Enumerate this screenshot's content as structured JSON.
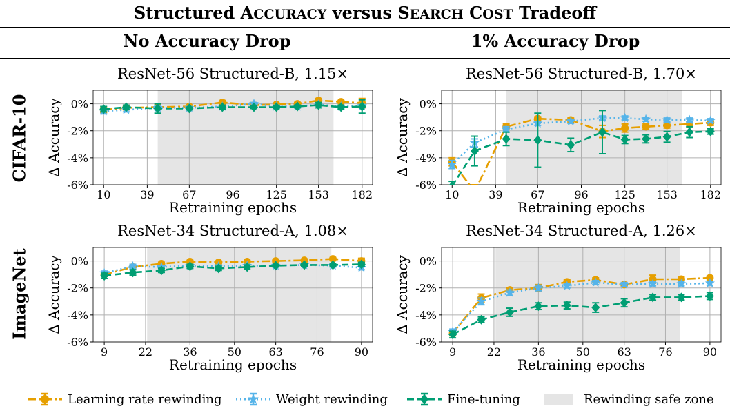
{
  "title": {
    "pre": "Structured ",
    "w1_first": "A",
    "w1_rest": "CCURACY",
    "mid": " versus ",
    "w2_first": "S",
    "w2_rest": "EARCH",
    "w3_first": "C",
    "w3_rest": "OST",
    "post": " Tradeoff"
  },
  "columns": [
    "No Accuracy Drop",
    "1% Accuracy Drop"
  ],
  "rows": [
    "CIFAR-10",
    "ImageNet"
  ],
  "legend": {
    "lr": "Learning rate rewinding",
    "wr": "Weight rewinding",
    "ft": "Fine-tuning",
    "zone": "Rewinding safe zone"
  },
  "colors": {
    "lr": "#e69f00",
    "wr": "#56b4e9",
    "ft": "#009e73",
    "zone": "#e5e5e5",
    "grid": "#b0b0b0"
  },
  "chart_data": [
    {
      "type": "line",
      "title": "ResNet-56 Structured-B, 1.15×",
      "xlabel": "Retraining epochs",
      "ylabel": "Δ Accuracy",
      "xticks": [
        10,
        39,
        67,
        96,
        125,
        153,
        182
      ],
      "yticks": [
        0,
        -2,
        -4,
        -6
      ],
      "ylim": [
        -6,
        1
      ],
      "xlim": [
        3,
        189
      ],
      "safe_zone": [
        46,
        163
      ],
      "x": [
        10,
        25,
        46,
        67,
        89,
        110,
        125,
        139,
        153,
        168,
        182
      ],
      "series": [
        {
          "key": "lr",
          "name": "Learning rate rewinding",
          "values": [
            -0.45,
            -0.3,
            -0.25,
            -0.2,
            0.1,
            -0.1,
            -0.05,
            0.0,
            0.25,
            0.15,
            0.05
          ],
          "err": [
            0.2,
            0.15,
            0.15,
            0.1,
            0.15,
            0.1,
            0.1,
            0.1,
            0.15,
            0.1,
            0.35
          ]
        },
        {
          "key": "wr",
          "name": "Weight rewinding",
          "values": [
            -0.55,
            -0.45,
            -0.3,
            -0.3,
            -0.2,
            0.0,
            -0.2,
            -0.2,
            -0.05,
            -0.2,
            -0.15
          ],
          "err": [
            0.2,
            0.15,
            0.15,
            0.1,
            0.1,
            0.1,
            0.1,
            0.1,
            0.1,
            0.1,
            0.1
          ]
        },
        {
          "key": "ft",
          "name": "Fine-tuning",
          "values": [
            -0.4,
            -0.25,
            -0.35,
            -0.35,
            -0.25,
            -0.25,
            -0.25,
            -0.2,
            -0.1,
            -0.25,
            -0.2
          ],
          "err": [
            0.2,
            0.15,
            0.35,
            0.1,
            0.15,
            0.1,
            0.1,
            0.1,
            0.2,
            0.15,
            0.5
          ]
        }
      ]
    },
    {
      "type": "line",
      "title": "ResNet-56 Structured-B, 1.70×",
      "xlabel": "Retraining epochs",
      "ylabel": "Δ Accuracy",
      "xticks": [
        10,
        39,
        67,
        96,
        125,
        153,
        182
      ],
      "yticks": [
        0,
        -2,
        -4,
        -6
      ],
      "ylim": [
        -6,
        1
      ],
      "xlim": [
        3,
        189
      ],
      "safe_zone": [
        46,
        163
      ],
      "x": [
        10,
        25,
        46,
        67,
        89,
        110,
        125,
        139,
        153,
        168,
        182
      ],
      "series": [
        {
          "key": "lr",
          "name": "Learning rate rewinding",
          "values": [
            -4.3,
            -6.5,
            -1.7,
            -1.1,
            -1.2,
            -2.05,
            -1.8,
            -1.7,
            -1.6,
            -1.5,
            -1.4
          ],
          "err": [
            0.3,
            0.5,
            0.2,
            0.15,
            0.15,
            0.45,
            0.3,
            0.2,
            0.2,
            0.2,
            0.2
          ]
        },
        {
          "key": "wr",
          "name": "Weight rewinding",
          "values": [
            -4.5,
            -2.9,
            -1.9,
            -1.45,
            -1.3,
            -1.05,
            -1.05,
            -1.15,
            -1.2,
            -1.2,
            -1.25
          ],
          "err": [
            0.3,
            0.3,
            0.2,
            0.15,
            0.15,
            0.15,
            0.15,
            0.15,
            0.15,
            0.15,
            0.15
          ]
        },
        {
          "key": "ft",
          "name": "Fine-tuning",
          "values": [
            -6.1,
            -3.5,
            -2.6,
            -2.7,
            -3.05,
            -2.1,
            -2.65,
            -2.6,
            -2.45,
            -2.1,
            -2.05
          ],
          "err": [
            0.35,
            1.1,
            0.5,
            2.0,
            0.5,
            1.6,
            0.3,
            0.3,
            0.4,
            0.4,
            0.2
          ]
        }
      ]
    },
    {
      "type": "line",
      "title": "ResNet-34 Structured-A, 1.08×",
      "xlabel": "Retraining epochs",
      "ylabel": "Δ Accuracy",
      "xticks": [
        9,
        22,
        36,
        50,
        63,
        76,
        90
      ],
      "yticks": [
        0,
        -2,
        -4,
        -6
      ],
      "ylim": [
        -6,
        1
      ],
      "xlim": [
        5.5,
        93.5
      ],
      "safe_zone": [
        22.5,
        80.5
      ],
      "x": [
        9,
        18,
        27,
        36,
        45,
        54,
        63,
        72,
        81,
        90
      ],
      "series": [
        {
          "key": "lr",
          "name": "Learning rate rewinding",
          "values": [
            -1.0,
            -0.45,
            -0.2,
            -0.05,
            -0.1,
            -0.05,
            0.0,
            0.05,
            0.15,
            0.0
          ],
          "err": [
            0.15,
            0.15,
            0.1,
            0.1,
            0.1,
            0.1,
            0.1,
            0.1,
            0.1,
            0.2
          ]
        },
        {
          "key": "wr",
          "name": "Weight rewinding",
          "values": [
            -0.9,
            -0.4,
            -0.45,
            -0.35,
            -0.4,
            -0.35,
            -0.35,
            -0.3,
            -0.35,
            -0.5
          ],
          "err": [
            0.15,
            0.15,
            0.1,
            0.1,
            0.1,
            0.1,
            0.1,
            0.1,
            0.1,
            0.15
          ]
        },
        {
          "key": "ft",
          "name": "Fine-tuning",
          "values": [
            -1.1,
            -0.85,
            -0.7,
            -0.4,
            -0.55,
            -0.45,
            -0.35,
            -0.3,
            -0.3,
            -0.25
          ],
          "err": [
            0.2,
            0.2,
            0.15,
            0.15,
            0.15,
            0.15,
            0.1,
            0.1,
            0.1,
            0.15
          ]
        }
      ]
    },
    {
      "type": "line",
      "title": "ResNet-34 Structured-A, 1.26×",
      "xlabel": "Retraining epochs",
      "ylabel": "Δ Accuracy",
      "xticks": [
        9,
        22,
        36,
        50,
        63,
        76,
        90
      ],
      "yticks": [
        0,
        -2,
        -4,
        -6
      ],
      "ylim": [
        -6,
        1
      ],
      "xlim": [
        5.5,
        93.5
      ],
      "safe_zone": [
        22.5,
        80.5
      ],
      "x": [
        9,
        18,
        27,
        36,
        45,
        54,
        63,
        72,
        81,
        90
      ],
      "series": [
        {
          "key": "lr",
          "name": "Learning rate rewinding",
          "values": [
            -5.35,
            -2.75,
            -2.15,
            -2.0,
            -1.55,
            -1.4,
            -1.75,
            -1.35,
            -1.35,
            -1.25
          ],
          "err": [
            0.2,
            0.3,
            0.15,
            0.25,
            0.15,
            0.15,
            0.15,
            0.3,
            0.15,
            0.15
          ]
        },
        {
          "key": "wr",
          "name": "Weight rewinding",
          "values": [
            -5.25,
            -3.0,
            -2.35,
            -2.0,
            -1.85,
            -1.6,
            -1.75,
            -1.7,
            -1.7,
            -1.65
          ],
          "err": [
            0.2,
            0.25,
            0.2,
            0.2,
            0.15,
            0.15,
            0.15,
            0.15,
            0.15,
            0.15
          ]
        },
        {
          "key": "ft",
          "name": "Fine-tuning",
          "values": [
            -5.45,
            -4.35,
            -3.8,
            -3.35,
            -3.3,
            -3.45,
            -3.1,
            -2.7,
            -2.7,
            -2.6
          ],
          "err": [
            0.25,
            0.2,
            0.3,
            0.25,
            0.25,
            0.35,
            0.3,
            0.2,
            0.2,
            0.25
          ]
        }
      ]
    }
  ]
}
